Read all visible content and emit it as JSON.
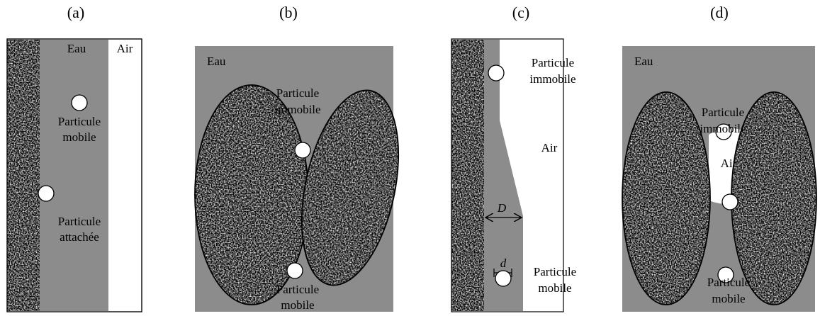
{
  "panels": [
    {
      "label": "(a)",
      "water": "Eau",
      "air": "Air",
      "mobile": [
        "Particule",
        "mobile"
      ],
      "attached": [
        "Particule",
        "attachée"
      ]
    },
    {
      "label": "(b)",
      "water": "Eau",
      "immobile": [
        "Particule",
        "immobile"
      ],
      "mobile": [
        "Particule",
        "mobile"
      ]
    },
    {
      "label": "(c)",
      "immobile": [
        "Particule",
        "immobile"
      ],
      "air": "Air",
      "big_d": "D",
      "small_d": "d",
      "mobile": [
        "Particule",
        "mobile"
      ]
    },
    {
      "label": "(d)",
      "water": "Eau",
      "immobile": [
        "Particule",
        "immobile"
      ],
      "air": "Air",
      "mobile": [
        "Particule",
        "mobile"
      ]
    }
  ]
}
